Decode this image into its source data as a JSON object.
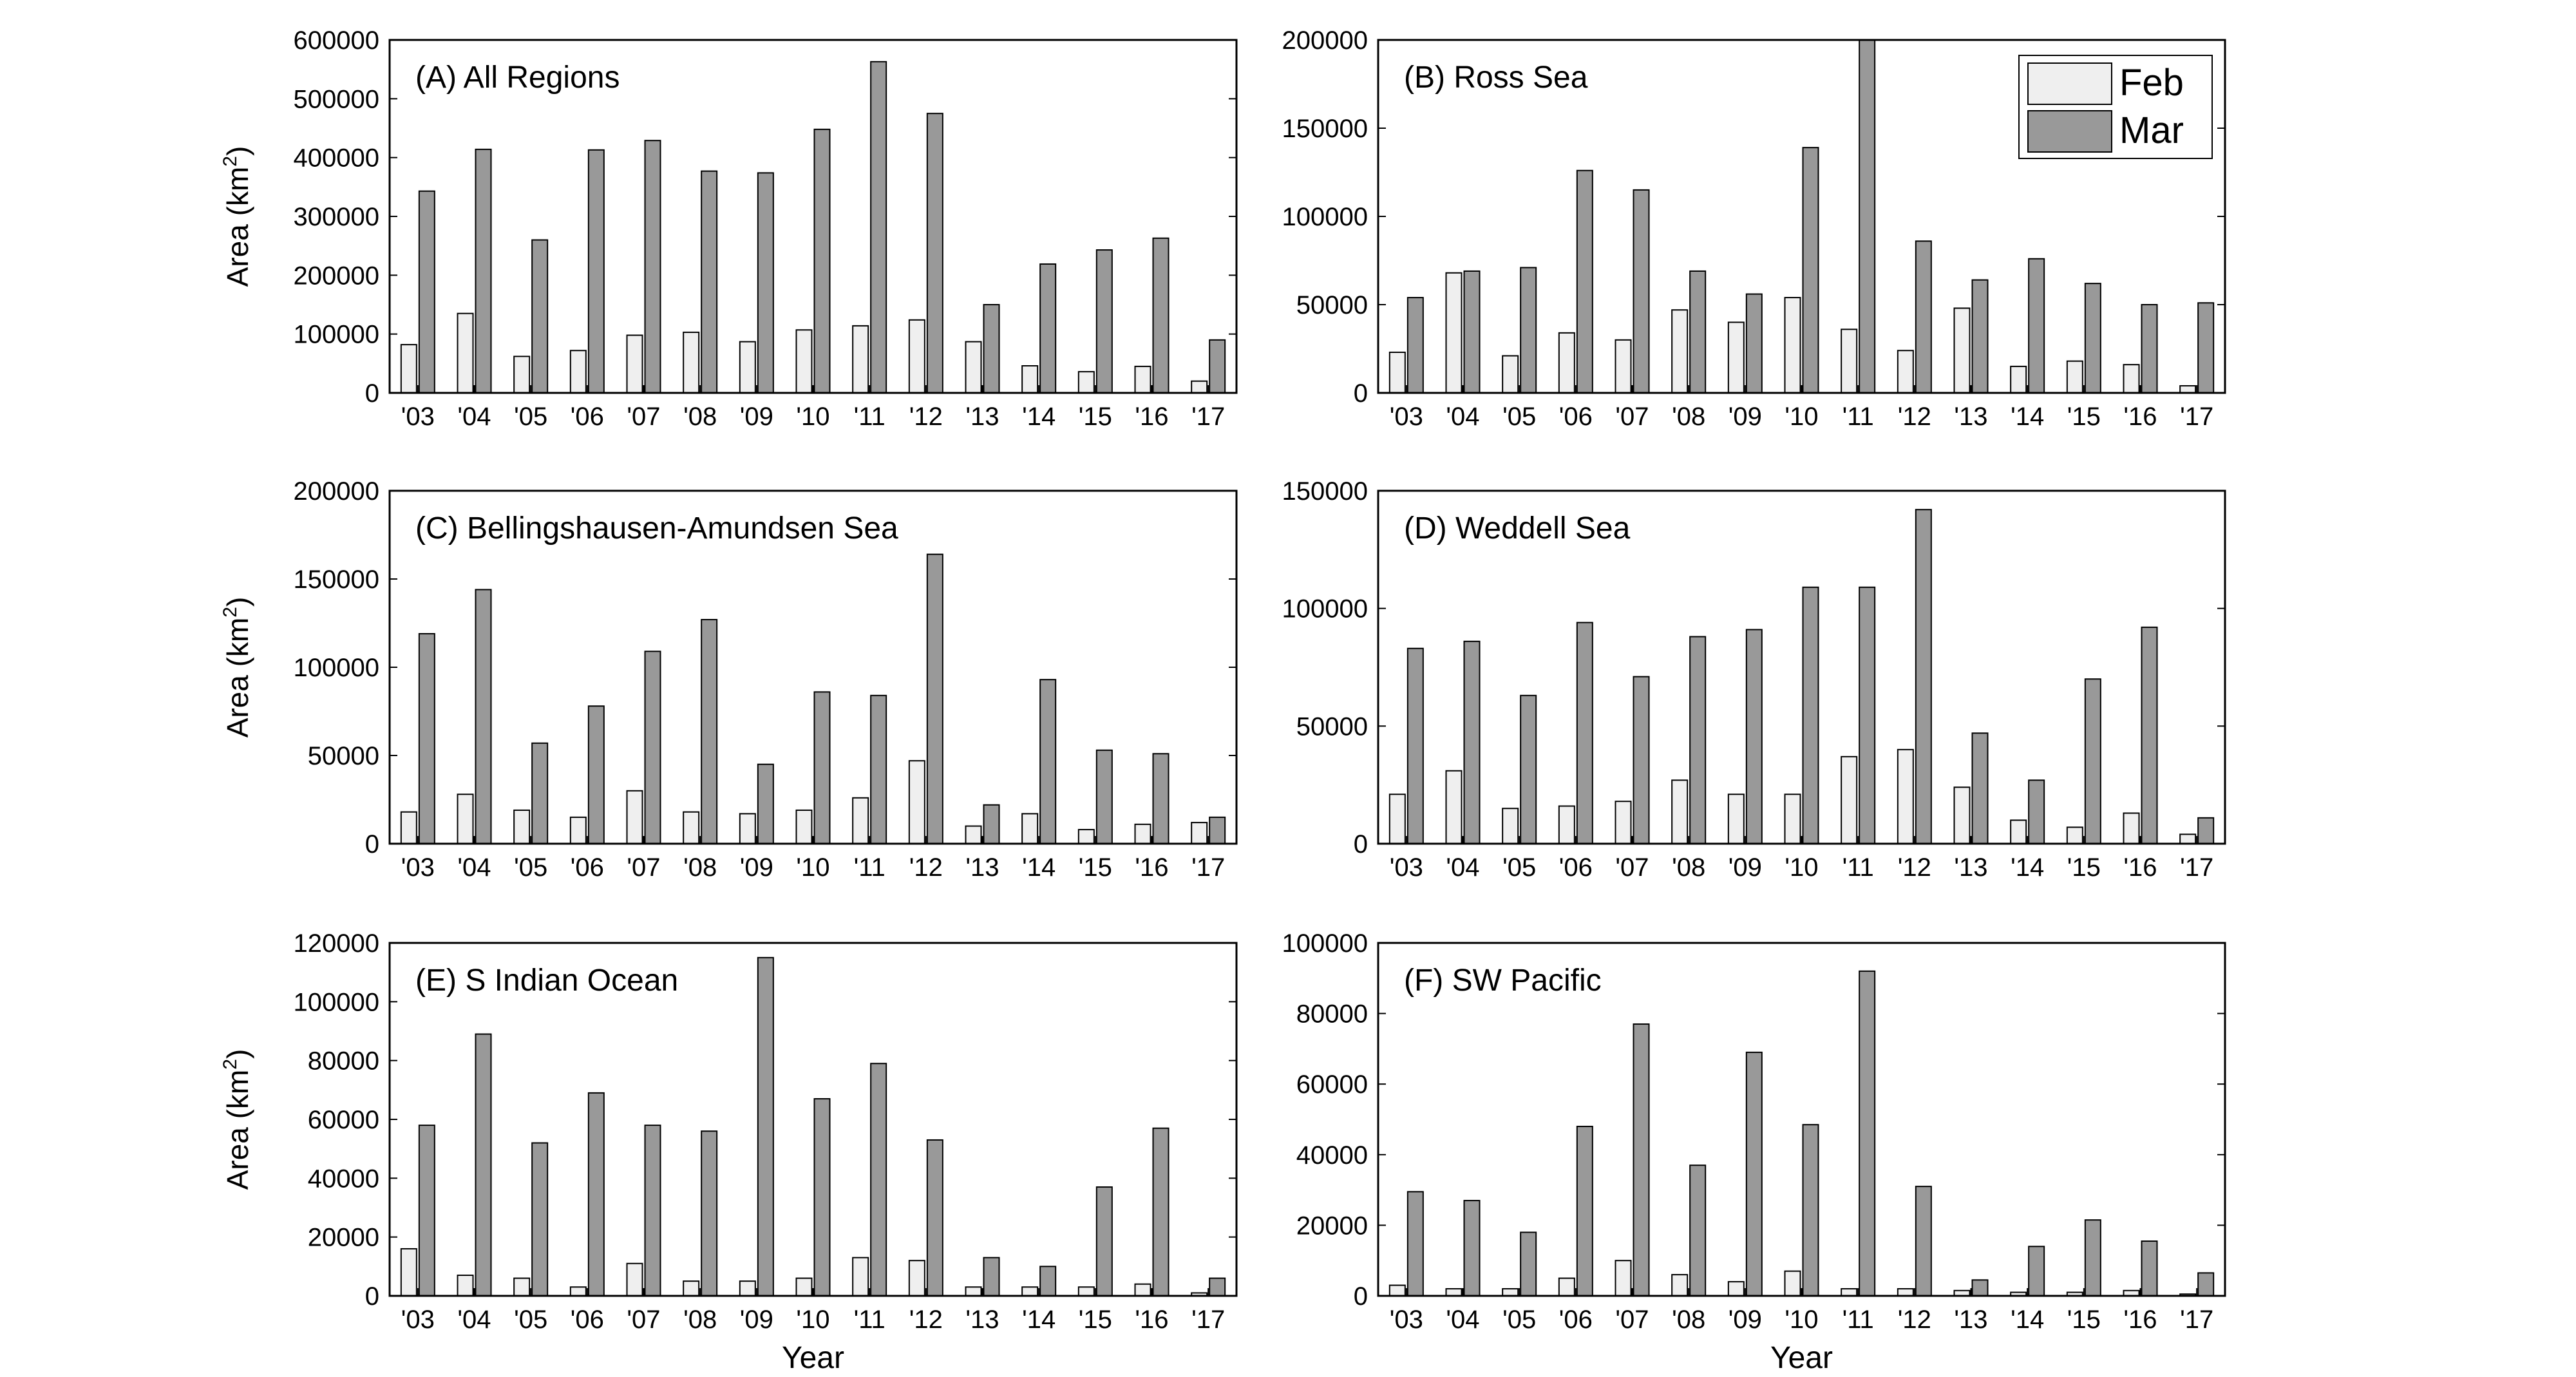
{
  "colors": {
    "feb": "#efefef",
    "mar": "#999999",
    "stroke": "#000000"
  },
  "common": {
    "xlabel": "Year",
    "ylabel_prefix": "Area (km",
    "ylabel_sup": "2",
    "ylabel_suffix": ")"
  },
  "legend": {
    "entries": [
      "Feb",
      "Mar"
    ],
    "position": "top-right",
    "panel": 1
  },
  "chart_data": [
    {
      "type": "bar",
      "title": "(A) All Regions",
      "categories": [
        "'03",
        "'04",
        "'05",
        "'06",
        "'07",
        "'08",
        "'09",
        "'10",
        "'11",
        "'12",
        "'13",
        "'14",
        "'15",
        "'16",
        "'17"
      ],
      "series": [
        {
          "name": "Feb",
          "values": [
            82000,
            135000,
            62000,
            72000,
            98000,
            103000,
            87000,
            107000,
            114000,
            124000,
            87000,
            46000,
            36000,
            45000,
            20000
          ]
        },
        {
          "name": "Mar",
          "values": [
            343000,
            414000,
            260000,
            413000,
            429000,
            377000,
            374000,
            448000,
            563000,
            475000,
            150000,
            219000,
            243000,
            263000,
            90000
          ]
        }
      ],
      "ylim": [
        0,
        600000
      ],
      "yticks": [
        "0",
        "100000",
        "200000",
        "300000",
        "400000",
        "500000",
        "600000"
      ],
      "xlabel": "",
      "ylabel": "Area (km2)",
      "grid": false
    },
    {
      "type": "bar",
      "title": "(B) Ross Sea",
      "categories": [
        "'03",
        "'04",
        "'05",
        "'06",
        "'07",
        "'08",
        "'09",
        "'10",
        "'11",
        "'12",
        "'13",
        "'14",
        "'15",
        "'16",
        "'17"
      ],
      "series": [
        {
          "name": "Feb",
          "values": [
            23000,
            68000,
            21000,
            34000,
            30000,
            47000,
            40000,
            54000,
            36000,
            24000,
            48000,
            15000,
            18000,
            16000,
            4000
          ]
        },
        {
          "name": "Mar",
          "values": [
            54000,
            69000,
            71000,
            126000,
            115000,
            69000,
            56000,
            139000,
            200000,
            86000,
            64000,
            76000,
            62000,
            50000,
            51000
          ]
        }
      ],
      "ylim": [
        0,
        200000
      ],
      "yticks": [
        "0",
        "50000",
        "100000",
        "150000",
        "200000"
      ],
      "xlabel": "",
      "ylabel": "",
      "grid": false
    },
    {
      "type": "bar",
      "title": "(C) Bellingshausen-Amundsen Sea",
      "categories": [
        "'03",
        "'04",
        "'05",
        "'06",
        "'07",
        "'08",
        "'09",
        "'10",
        "'11",
        "'12",
        "'13",
        "'14",
        "'15",
        "'16",
        "'17"
      ],
      "series": [
        {
          "name": "Feb",
          "values": [
            18000,
            28000,
            19000,
            15000,
            30000,
            18000,
            17000,
            19000,
            26000,
            47000,
            10000,
            17000,
            8000,
            11000,
            12000
          ]
        },
        {
          "name": "Mar",
          "values": [
            119000,
            144000,
            57000,
            78000,
            109000,
            127000,
            45000,
            86000,
            84000,
            164000,
            22000,
            93000,
            53000,
            51000,
            15000
          ]
        }
      ],
      "ylim": [
        0,
        200000
      ],
      "yticks": [
        "0",
        "50000",
        "100000",
        "150000",
        "200000"
      ],
      "xlabel": "",
      "ylabel": "Area (km2)",
      "grid": false
    },
    {
      "type": "bar",
      "title": "(D) Weddell Sea",
      "categories": [
        "'03",
        "'04",
        "'05",
        "'06",
        "'07",
        "'08",
        "'09",
        "'10",
        "'11",
        "'12",
        "'13",
        "'14",
        "'15",
        "'16",
        "'17"
      ],
      "series": [
        {
          "name": "Feb",
          "values": [
            21000,
            31000,
            15000,
            16000,
            18000,
            27000,
            21000,
            21000,
            37000,
            40000,
            24000,
            10000,
            7000,
            13000,
            4000
          ]
        },
        {
          "name": "Mar",
          "values": [
            83000,
            86000,
            63000,
            94000,
            71000,
            88000,
            91000,
            109000,
            109000,
            142000,
            47000,
            27000,
            70000,
            92000,
            11000
          ]
        }
      ],
      "ylim": [
        0,
        150000
      ],
      "yticks": [
        "0",
        "50000",
        "100000",
        "150000"
      ],
      "xlabel": "",
      "ylabel": "",
      "grid": false
    },
    {
      "type": "bar",
      "title": "(E) S Indian Ocean",
      "categories": [
        "'03",
        "'04",
        "'05",
        "'06",
        "'07",
        "'08",
        "'09",
        "'10",
        "'11",
        "'12",
        "'13",
        "'14",
        "'15",
        "'16",
        "'17"
      ],
      "series": [
        {
          "name": "Feb",
          "values": [
            16000,
            7000,
            6000,
            3000,
            11000,
            5000,
            5000,
            6000,
            13000,
            12000,
            3000,
            3000,
            3000,
            4000,
            1000
          ]
        },
        {
          "name": "Mar",
          "values": [
            58000,
            89000,
            52000,
            69000,
            58000,
            56000,
            115000,
            67000,
            79000,
            53000,
            13000,
            10000,
            37000,
            57000,
            6000
          ]
        }
      ],
      "ylim": [
        0,
        120000
      ],
      "yticks": [
        "0",
        "20000",
        "40000",
        "60000",
        "80000",
        "100000",
        "120000"
      ],
      "xlabel": "Year",
      "ylabel": "Area (km2)",
      "grid": false
    },
    {
      "type": "bar",
      "title": "(F) SW Pacific",
      "categories": [
        "'03",
        "'04",
        "'05",
        "'06",
        "'07",
        "'08",
        "'09",
        "'10",
        "'11",
        "'12",
        "'13",
        "'14",
        "'15",
        "'16",
        "'17"
      ],
      "series": [
        {
          "name": "Feb",
          "values": [
            3000,
            2000,
            2000,
            5000,
            10000,
            6000,
            4000,
            7000,
            2000,
            2000,
            1500,
            1000,
            1000,
            1500,
            500
          ]
        },
        {
          "name": "Mar",
          "values": [
            29500,
            27000,
            18000,
            48000,
            77000,
            37000,
            69000,
            48500,
            92000,
            31000,
            4500,
            14000,
            21500,
            15500,
            6500
          ]
        }
      ],
      "ylim": [
        0,
        100000
      ],
      "yticks": [
        "0",
        "20000",
        "40000",
        "60000",
        "80000",
        "100000"
      ],
      "xlabel": "Year",
      "ylabel": "",
      "grid": false
    }
  ]
}
